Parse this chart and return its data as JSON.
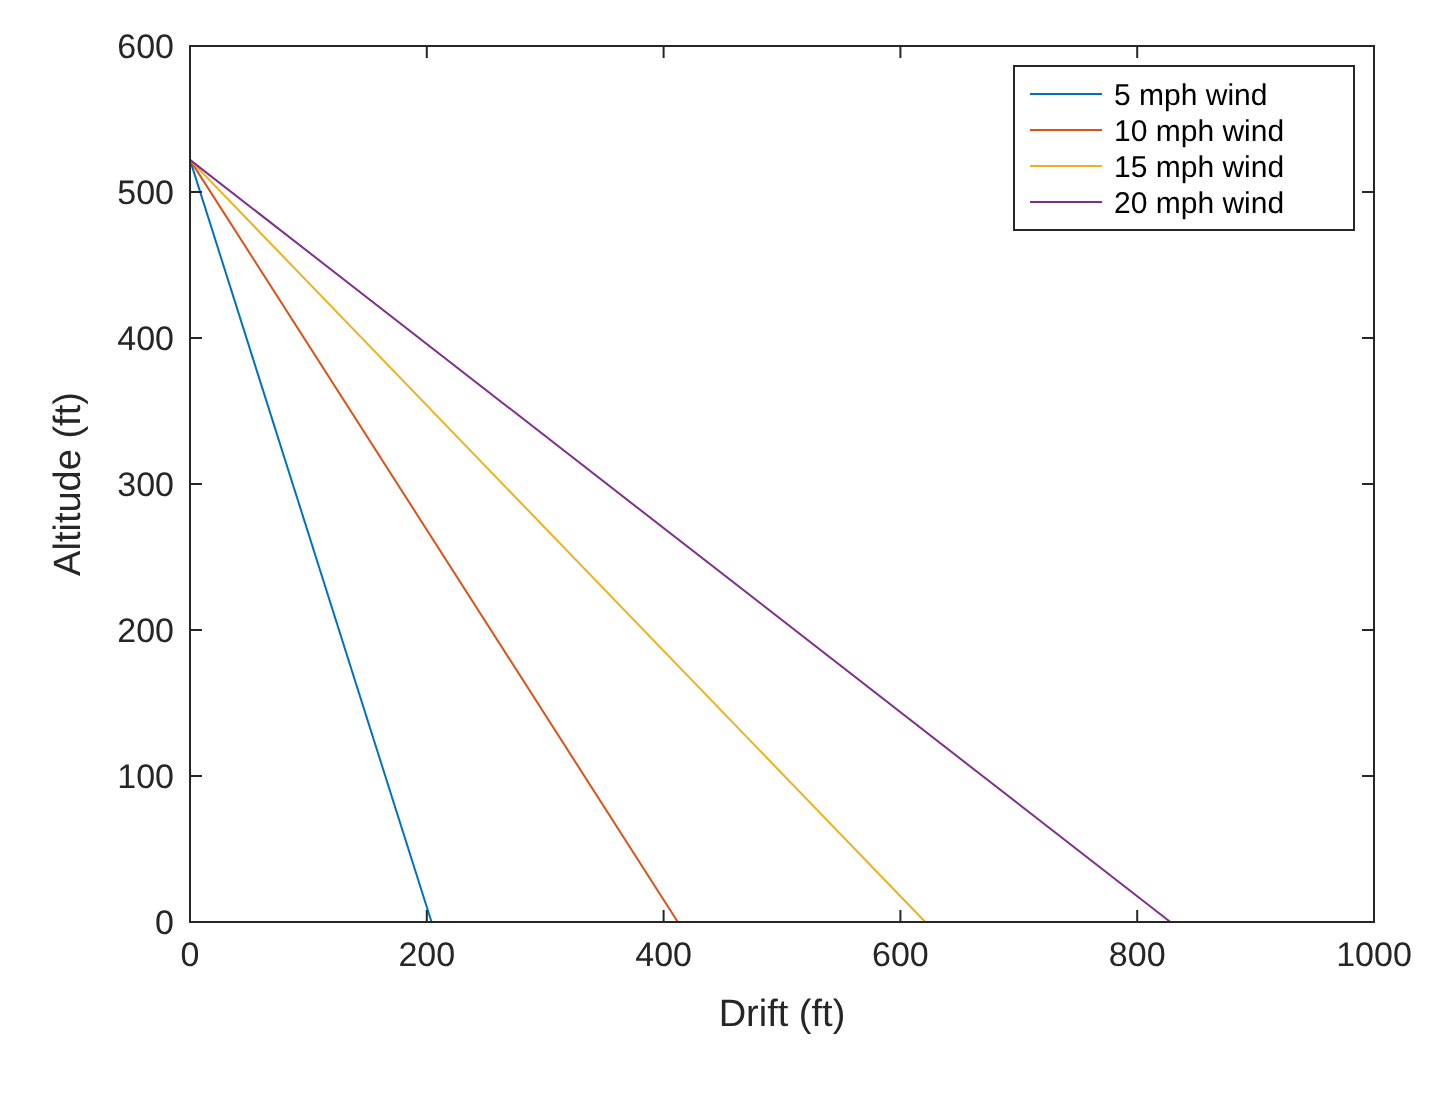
{
  "chart_data": {
    "type": "line",
    "xlabel": "Drift (ft)",
    "ylabel": "Altitude (ft)",
    "xlim": [
      0,
      1000
    ],
    "xticks": [
      0,
      200,
      400,
      600,
      800,
      1000
    ],
    "ylim": [
      0,
      600
    ],
    "yticks": [
      0,
      100,
      200,
      300,
      400,
      500,
      600
    ],
    "grid": false,
    "legend": "top right",
    "marker": "none",
    "line_style": "solid",
    "series": [
      {
        "name": "5 mph wind",
        "color": "#0072bd",
        "x": [
          0,
          204
        ],
        "values": [
          522,
          0
        ]
      },
      {
        "name": "10 mph wind",
        "color": "#d95319",
        "x": [
          0,
          412
        ],
        "values": [
          522,
          0
        ]
      },
      {
        "name": "15 mph wind",
        "color": "#edb120",
        "x": [
          0,
          621
        ],
        "values": [
          522,
          0
        ]
      },
      {
        "name": "20 mph wind",
        "color": "#7e2f8e",
        "x": [
          0,
          828
        ],
        "values": [
          522,
          0
        ]
      }
    ]
  }
}
